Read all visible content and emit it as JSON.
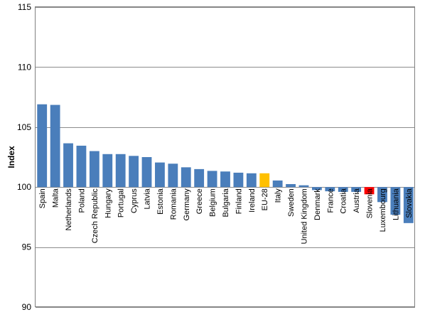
{
  "chart_data": {
    "type": "bar",
    "ylabel": "Index",
    "ylim": [
      90,
      115
    ],
    "yticks": [
      90,
      95,
      100,
      105,
      110,
      115
    ],
    "baseline": 100,
    "grid": true,
    "legend": "none",
    "categories": [
      "Spain",
      "Malta",
      "Netherlands",
      "Poland",
      "Czech Republic",
      "Hungary",
      "Portugal",
      "Cyprus",
      "Latvia",
      "Estonia",
      "Romania",
      "Germany",
      "Greece",
      "Belgium",
      "Bulgaria",
      "Finland",
      "Ireland",
      "EU-28",
      "Italy",
      "Sweden",
      "United Kingdom",
      "Denmark",
      "France",
      "Croatia",
      "Austria",
      "Slovenia",
      "Luxembourg",
      "Lithuania",
      "Slovakia"
    ],
    "values": [
      106.9,
      106.85,
      103.65,
      103.45,
      103.0,
      102.75,
      102.75,
      102.6,
      102.5,
      102.05,
      101.95,
      101.65,
      101.5,
      101.35,
      101.3,
      101.2,
      101.15,
      101.15,
      100.55,
      100.25,
      100.15,
      99.75,
      99.65,
      99.6,
      99.6,
      99.4,
      98.75,
      97.7,
      97.0
    ],
    "colors": {
      "default": "#4a7ebb",
      "EU-28": "#ffc000",
      "Slovenia": "#ff0000"
    }
  }
}
